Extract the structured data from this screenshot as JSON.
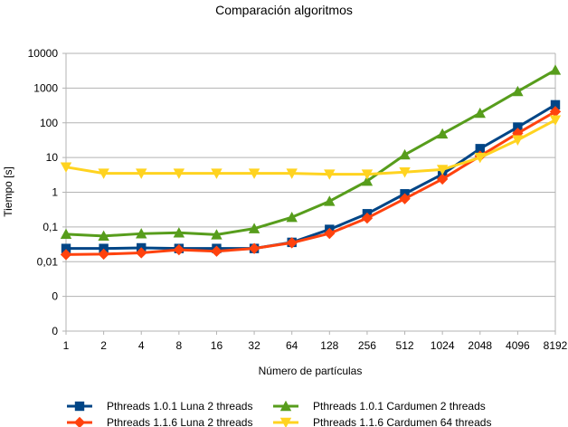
{
  "chart_data": {
    "type": "line",
    "title": "Comparación algoritmos",
    "xlabel": "Número de partículas",
    "ylabel": "Tiempo [s]",
    "y_scale": "log",
    "ylim_decades": [
      -4,
      4
    ],
    "grid": true,
    "legend_position": "bottom",
    "categories": [
      "1",
      "2",
      "4",
      "8",
      "16",
      "32",
      "64",
      "128",
      "256",
      "512",
      "1024",
      "2048",
      "4096",
      "8192"
    ],
    "y_ticks": [
      {
        "label": "10000",
        "decade": 4
      },
      {
        "label": "1000",
        "decade": 3
      },
      {
        "label": "100",
        "decade": 2
      },
      {
        "label": "10",
        "decade": 1
      },
      {
        "label": "1",
        "decade": 0
      },
      {
        "label": "0,1",
        "decade": -1
      },
      {
        "label": "0,01",
        "decade": -2
      },
      {
        "label": "0",
        "decade": -3
      },
      {
        "label": "0",
        "decade": -4
      }
    ],
    "series": [
      {
        "name": "Pthreads 1.0.1 Luna 2 threads",
        "color": "#004586",
        "marker": "square",
        "values": [
          0.024,
          0.024,
          0.025,
          0.024,
          0.024,
          0.024,
          0.036,
          0.085,
          0.24,
          0.9,
          3.3,
          18,
          75,
          330
        ]
      },
      {
        "name": "Pthreads 1.0.1 Cardumen 2 threads",
        "color": "#579d1c",
        "marker": "triangle-up",
        "values": [
          0.062,
          0.055,
          0.064,
          0.068,
          0.06,
          0.09,
          0.19,
          0.55,
          2.1,
          12,
          48,
          190,
          800,
          3300
        ]
      },
      {
        "name": "Pthreads 1.1.6 Luna 2 threads",
        "color": "#ff420e",
        "marker": "diamond",
        "values": [
          0.016,
          0.0165,
          0.018,
          0.022,
          0.02,
          0.024,
          0.035,
          0.065,
          0.18,
          0.65,
          2.4,
          11,
          50,
          210
        ]
      },
      {
        "name": "Pthreads 1.1.6 Cardumen 64 threads",
        "color": "#ffd320",
        "marker": "triangle-down",
        "values": [
          5.3,
          3.5,
          3.5,
          3.5,
          3.5,
          3.5,
          3.5,
          3.3,
          3.3,
          3.8,
          4.5,
          10,
          32,
          120
        ]
      }
    ]
  }
}
